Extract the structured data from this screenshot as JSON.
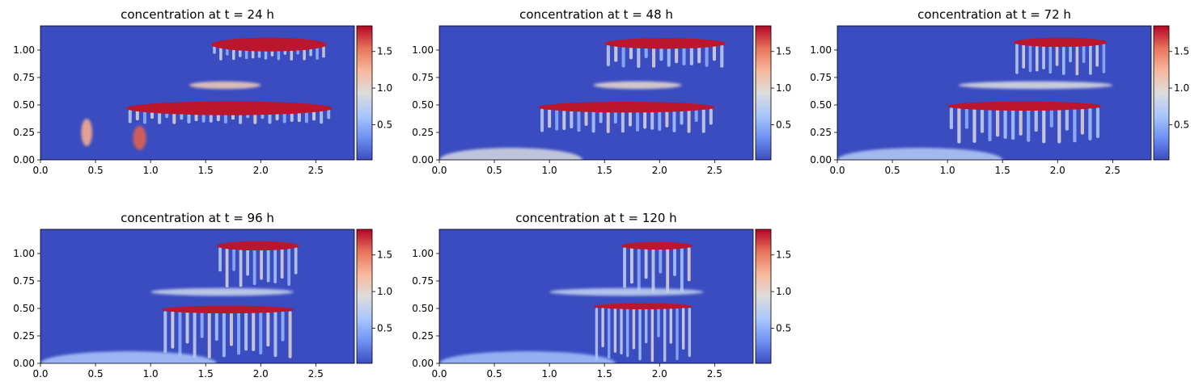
{
  "figure": {
    "colormap": "coolwarm",
    "colormap_stops": [
      "#3b4cc0",
      "#6f92f3",
      "#aac7fd",
      "#dddcdc",
      "#f7b89c",
      "#e7745b",
      "#b40426"
    ],
    "background_color": "#3b4cc0"
  },
  "chart_data": [
    {
      "type": "heatmap",
      "title": "concentration at t = 24 h",
      "xlim": [
        0.0,
        2.85
      ],
      "ylim": [
        0.0,
        1.22
      ],
      "xticks": [
        "0.0",
        "0.5",
        "1.0",
        "1.5",
        "2.0",
        "2.5"
      ],
      "yticks": [
        "0.00",
        "0.25",
        "0.50",
        "0.75",
        "1.00"
      ],
      "colorbar": {
        "range": [
          0.02,
          1.85
        ],
        "ticks": [
          "0.5",
          "1.0",
          "1.5"
        ]
      },
      "features": [
        {
          "kind": "layer",
          "x": [
            1.55,
            2.6
          ],
          "y": 1.05,
          "thick": 0.045,
          "value": 1.8,
          "fingers": 18,
          "depth": 0.1
        },
        {
          "kind": "layer",
          "x": [
            0.78,
            2.65
          ],
          "y": 0.47,
          "thick": 0.045,
          "value": 1.8,
          "fingers": 28,
          "depth": 0.1
        },
        {
          "kind": "plume",
          "x": [
            1.35,
            2.0
          ],
          "y": 0.68,
          "value": 1.1
        },
        {
          "kind": "blob",
          "x": 0.42,
          "y": 0.25,
          "w": 0.1,
          "h": 0.25,
          "value": 1.3
        },
        {
          "kind": "blob",
          "x": 0.9,
          "y": 0.2,
          "w": 0.12,
          "h": 0.22,
          "value": 1.6
        }
      ]
    },
    {
      "type": "heatmap",
      "title": "concentration at t = 48 h",
      "xlim": [
        0.0,
        2.85
      ],
      "ylim": [
        0.0,
        1.22
      ],
      "xticks": [
        "0.0",
        "0.5",
        "1.0",
        "1.5",
        "2.0",
        "2.5"
      ],
      "yticks": [
        "0.00",
        "0.25",
        "0.50",
        "0.75",
        "1.00"
      ],
      "colorbar": {
        "range": [
          0.02,
          1.85
        ],
        "ticks": [
          "0.5",
          "1.0",
          "1.5"
        ]
      },
      "features": [
        {
          "kind": "layer",
          "x": [
            1.5,
            2.6
          ],
          "y": 1.06,
          "thick": 0.035,
          "value": 1.8,
          "fingers": 16,
          "depth": 0.16
        },
        {
          "kind": "layer",
          "x": [
            0.9,
            2.5
          ],
          "y": 0.48,
          "thick": 0.035,
          "value": 1.8,
          "fingers": 24,
          "depth": 0.17
        },
        {
          "kind": "plume",
          "x": [
            1.4,
            2.2
          ],
          "y": 0.68,
          "value": 1.0
        },
        {
          "kind": "floor",
          "x": [
            0.0,
            1.3
          ],
          "y": 0.05,
          "value": 0.9
        }
      ]
    },
    {
      "type": "heatmap",
      "title": "concentration at t = 72 h",
      "xlim": [
        0.0,
        2.85
      ],
      "ylim": [
        0.0,
        1.22
      ],
      "xticks": [
        "0.0",
        "0.5",
        "1.0",
        "1.5",
        "2.0",
        "2.5"
      ],
      "yticks": [
        "0.00",
        "0.25",
        "0.50",
        "0.75",
        "1.00"
      ],
      "colorbar": {
        "range": [
          0.02,
          1.85
        ],
        "ticks": [
          "0.5",
          "1.0",
          "1.5"
        ]
      },
      "features": [
        {
          "kind": "layer",
          "x": [
            1.6,
            2.45
          ],
          "y": 1.07,
          "thick": 0.03,
          "value": 1.8,
          "fingers": 14,
          "depth": 0.22
        },
        {
          "kind": "layer",
          "x": [
            1.0,
            2.4
          ],
          "y": 0.49,
          "thick": 0.03,
          "value": 1.8,
          "fingers": 20,
          "depth": 0.25
        },
        {
          "kind": "plume",
          "x": [
            1.1,
            2.5
          ],
          "y": 0.68,
          "value": 0.9
        },
        {
          "kind": "floor",
          "x": [
            0.0,
            1.5
          ],
          "y": 0.05,
          "value": 0.7
        }
      ]
    },
    {
      "type": "heatmap",
      "title": "concentration at t = 96 h",
      "xlim": [
        0.0,
        2.85
      ],
      "ylim": [
        0.0,
        1.22
      ],
      "xticks": [
        "0.0",
        "0.5",
        "1.0",
        "1.5",
        "2.0",
        "2.5"
      ],
      "yticks": [
        "0.00",
        "0.25",
        "0.50",
        "0.75",
        "1.00"
      ],
      "colorbar": {
        "range": [
          0.02,
          1.85
        ],
        "ticks": [
          "0.5",
          "1.0",
          "1.5"
        ]
      },
      "features": [
        {
          "kind": "layer",
          "x": [
            1.6,
            2.35
          ],
          "y": 1.07,
          "thick": 0.03,
          "value": 1.8,
          "fingers": 12,
          "depth": 0.28
        },
        {
          "kind": "layer",
          "x": [
            1.1,
            2.3
          ],
          "y": 0.49,
          "thick": 0.025,
          "value": 1.8,
          "fingers": 18,
          "depth": 0.33
        },
        {
          "kind": "plume",
          "x": [
            1.0,
            2.3
          ],
          "y": 0.65,
          "value": 0.8
        },
        {
          "kind": "floor",
          "x": [
            0.0,
            1.6
          ],
          "y": 0.05,
          "value": 0.65
        }
      ]
    },
    {
      "type": "heatmap",
      "title": "concentration at t = 120 h",
      "xlim": [
        0.0,
        2.85
      ],
      "ylim": [
        0.0,
        1.22
      ],
      "xticks": [
        "0.0",
        "0.5",
        "1.0",
        "1.5",
        "2.0",
        "2.5"
      ],
      "yticks": [
        "0.00",
        "0.25",
        "0.50",
        "0.75",
        "1.00"
      ],
      "colorbar": {
        "range": [
          0.02,
          1.85
        ],
        "ticks": [
          "0.5",
          "1.0",
          "1.5"
        ]
      },
      "features": [
        {
          "kind": "layer",
          "x": [
            1.65,
            2.3
          ],
          "y": 1.07,
          "thick": 0.025,
          "value": 1.8,
          "fingers": 10,
          "depth": 0.32
        },
        {
          "kind": "layer",
          "x": [
            1.4,
            2.3
          ],
          "y": 0.52,
          "thick": 0.02,
          "value": 1.8,
          "fingers": 16,
          "depth": 0.38
        },
        {
          "kind": "plume",
          "x": [
            1.0,
            2.4
          ],
          "y": 0.65,
          "value": 0.75
        },
        {
          "kind": "floor",
          "x": [
            0.0,
            1.6
          ],
          "y": 0.05,
          "value": 0.6
        }
      ]
    }
  ]
}
